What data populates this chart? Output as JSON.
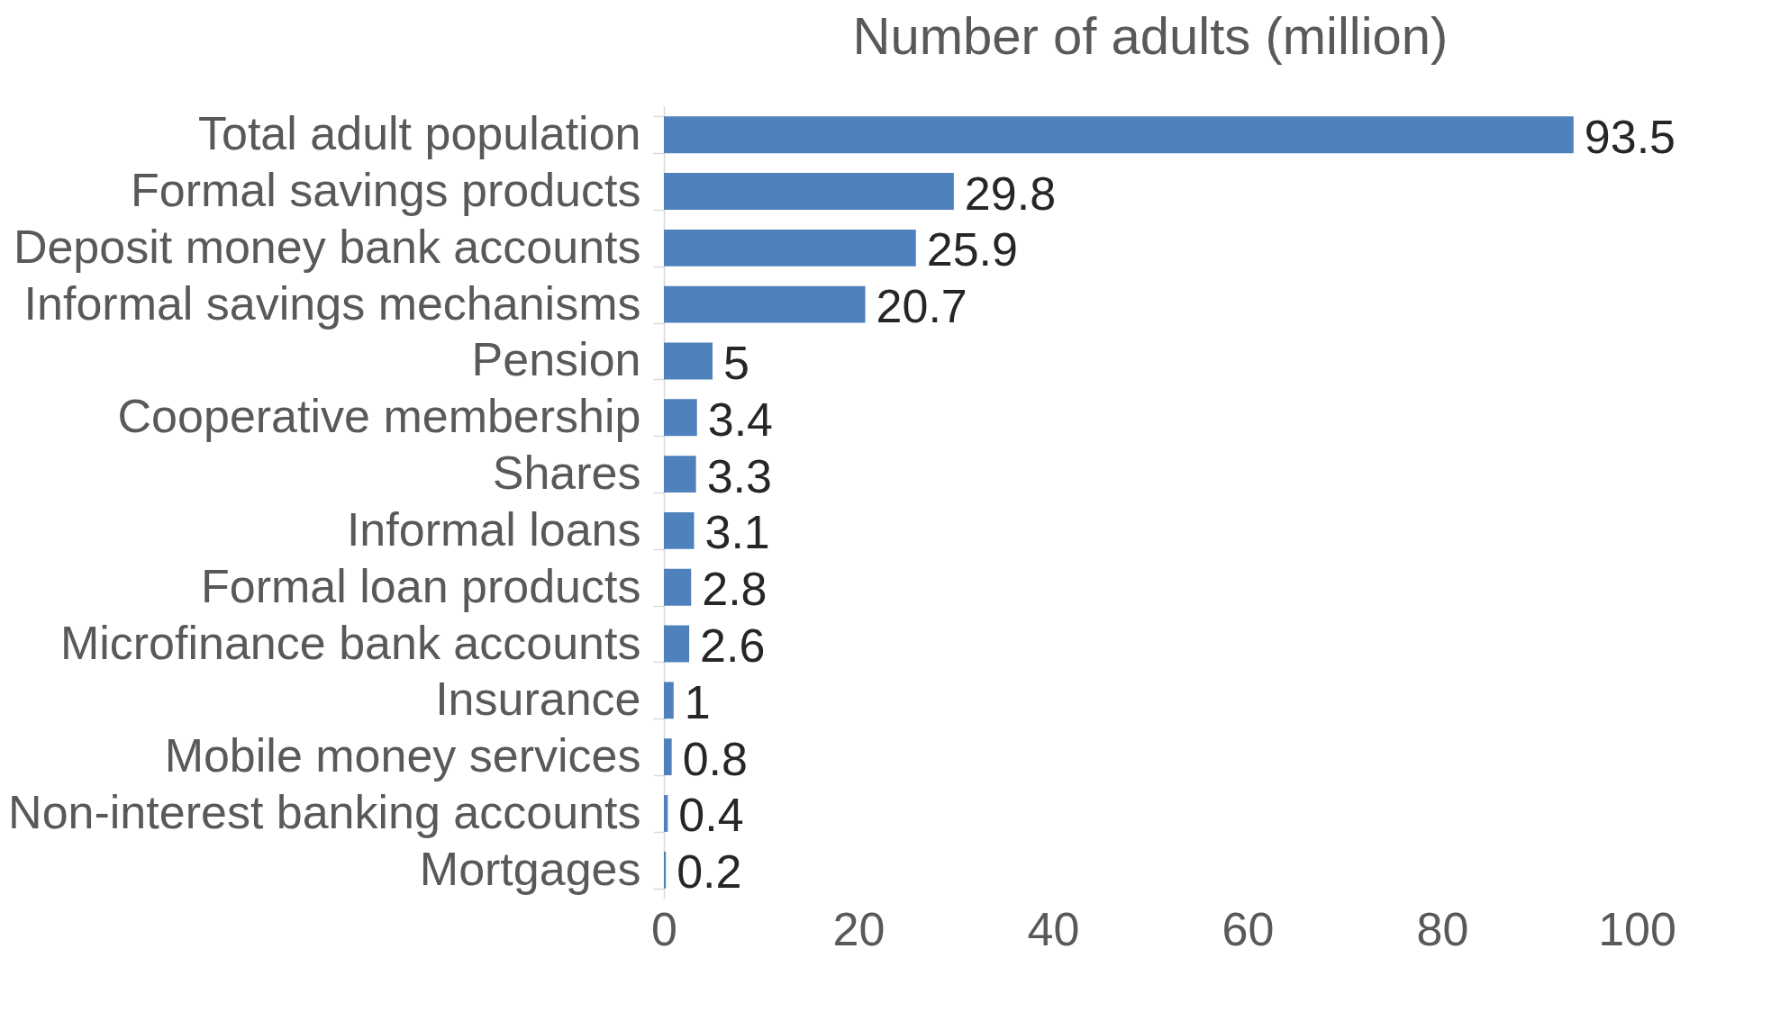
{
  "chart_data": {
    "type": "bar",
    "orientation": "horizontal",
    "title": "Number of adults (million)",
    "categories": [
      "Total adult population",
      "Formal savings products",
      "Deposit money bank accounts",
      "Informal savings mechanisms",
      "Pension",
      "Cooperative membership",
      "Shares",
      "Informal loans",
      "Formal loan products",
      "Microfinance bank accounts",
      "Insurance",
      "Mobile money services",
      "Non-interest banking accounts",
      "Mortgages"
    ],
    "values": [
      93.5,
      29.8,
      25.9,
      20.7,
      5,
      3.4,
      3.3,
      3.1,
      2.8,
      2.6,
      1,
      0.8,
      0.4,
      0.2
    ],
    "color": "#4f81bd",
    "xlim": [
      0,
      100
    ],
    "xticks": [
      0,
      20,
      40,
      60,
      80,
      100
    ],
    "grid": false,
    "data_labels": true
  }
}
